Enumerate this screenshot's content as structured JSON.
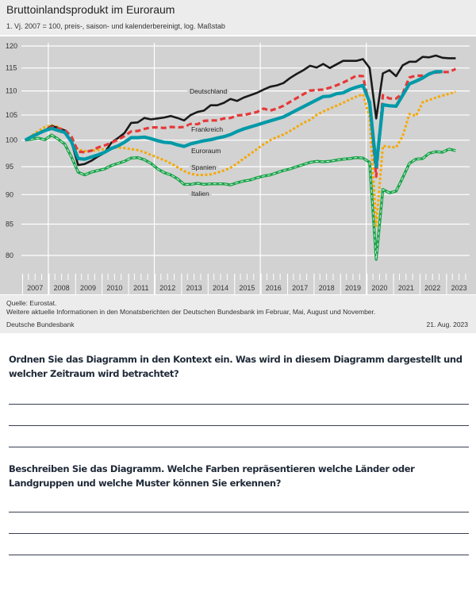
{
  "header": {
    "title": "Bruttoinlandsprodukt im Euroraum",
    "subtitle": "1. Vj. 2007 = 100, preis-, saison- und kalenderbereinigt, log. Maßstab"
  },
  "footer": {
    "source": "Quelle: Eurostat.",
    "note": "Weitere aktuelle Informationen in den Monatsberichten der Deutschen Bundesbank im Februar, Mai, August und November.",
    "publisher": "Deutsche Bundesbank",
    "date": "21. Aug. 2023"
  },
  "questions": [
    {
      "text": "Ordnen Sie das Diagramm in den Kontext ein. Was wird in diesem Diagramm dargestellt und welcher Zeitraum wird betrachtet?"
    },
    {
      "text": "Beschreiben Sie das Diagramm. Welche Farben repräsentieren welche Länder oder Landgruppen und welche Muster können Sie erkennen?"
    }
  ],
  "chart_data": {
    "type": "line",
    "title": "Bruttoinlandsprodukt im Euroraum",
    "subtitle": "1. Vj. 2007 = 100, preis-, saison- und kalenderbereinigt, log. Maßstab",
    "x_frequency": "quarterly",
    "x_start": "2007 Q1",
    "x_tick_labels": [
      "2007",
      "2008",
      "2009",
      "2010",
      "2011",
      "2012",
      "2013",
      "2014",
      "2015",
      "2016",
      "2017",
      "2018",
      "2019",
      "2020",
      "2021",
      "2022",
      "2023"
    ],
    "y_scale": "log",
    "ylim": [
      78,
      121
    ],
    "y_ticks": [
      80,
      85,
      90,
      95,
      100,
      105,
      110,
      115,
      120
    ],
    "grid": true,
    "legend": "inline labels",
    "series": [
      {
        "name": "Italien",
        "color": "#1aa34a",
        "style": "double-dashed",
        "values": [
          100,
          100.2,
          100.4,
          100.1,
          101.0,
          100.2,
          99.2,
          96.8,
          94.0,
          93.5,
          94.0,
          94.3,
          94.6,
          95.2,
          95.6,
          96.0,
          96.6,
          96.7,
          96.3,
          95.6,
          94.6,
          93.9,
          93.5,
          92.8,
          91.8,
          91.8,
          92.0,
          91.8,
          91.9,
          91.9,
          91.9,
          91.7,
          92.1,
          92.4,
          92.6,
          93.0,
          93.3,
          93.5,
          93.9,
          94.3,
          94.6,
          95.0,
          95.4,
          95.8,
          96.0,
          95.9,
          96.0,
          96.2,
          96.4,
          96.5,
          96.7,
          96.6,
          95.8,
          79.4,
          90.9,
          90.3,
          90.6,
          93.0,
          95.6,
          96.4,
          96.5,
          97.5,
          97.8,
          97.7,
          98.3,
          98.0
        ]
      },
      {
        "name": "Spanien",
        "color": "#f5a800",
        "style": "dotted",
        "values": [
          100,
          100.9,
          101.8,
          102.6,
          102.9,
          102.6,
          101.7,
          99.7,
          98.2,
          97.9,
          98.0,
          98.1,
          98.3,
          98.5,
          98.6,
          98.5,
          98.3,
          98.1,
          97.7,
          97.2,
          96.7,
          96.2,
          95.6,
          94.9,
          94.2,
          93.7,
          93.5,
          93.5,
          93.6,
          93.9,
          94.3,
          94.8,
          95.6,
          96.5,
          97.4,
          98.3,
          99.2,
          100.0,
          100.6,
          101.1,
          101.8,
          102.6,
          103.4,
          104.0,
          105.0,
          105.7,
          106.3,
          106.9,
          107.5,
          108.2,
          108.8,
          109.3,
          104.5,
          84.7,
          98.9,
          98.7,
          98.6,
          100.8,
          105.2,
          104.8,
          107.6,
          108.1,
          108.6,
          109.0,
          109.4,
          109.8
        ]
      },
      {
        "name": "Deutschland",
        "color": "#1a1a1a",
        "style": "solid",
        "values": [
          100,
          100.6,
          101.3,
          101.9,
          102.8,
          102.4,
          101.9,
          99.6,
          95.3,
          95.5,
          96.1,
          96.9,
          97.6,
          99.5,
          100.4,
          101.4,
          103.4,
          103.5,
          104.4,
          104.1,
          104.3,
          104.5,
          104.8,
          104.4,
          103.9,
          105.0,
          105.6,
          105.9,
          107.0,
          107.0,
          107.5,
          108.3,
          107.9,
          108.6,
          109.1,
          109.6,
          110.3,
          110.9,
          111.2,
          111.7,
          112.8,
          113.7,
          114.5,
          115.5,
          115.1,
          115.9,
          115.0,
          115.8,
          116.6,
          116.6,
          116.6,
          117.0,
          115.0,
          104.3,
          113.8,
          114.5,
          113.2,
          115.6,
          116.4,
          116.4,
          117.5,
          117.4,
          117.8,
          117.3,
          117.2,
          117.2
        ]
      },
      {
        "name": "Frankreich",
        "color": "#e63838",
        "style": "dashed",
        "values": [
          100,
          100.6,
          101.2,
          101.9,
          102.6,
          102.3,
          102.0,
          100.7,
          97.8,
          97.7,
          98.0,
          98.6,
          99.0,
          99.5,
          100.1,
          100.8,
          101.7,
          101.8,
          102.2,
          102.5,
          102.5,
          102.4,
          102.6,
          102.5,
          102.6,
          103.2,
          103.1,
          103.8,
          103.9,
          103.9,
          104.3,
          104.4,
          104.9,
          105.0,
          105.3,
          105.6,
          106.3,
          105.9,
          106.3,
          106.9,
          107.7,
          108.5,
          109.3,
          110.1,
          110.2,
          110.3,
          110.7,
          111.2,
          111.8,
          112.5,
          113.3,
          113.2,
          106.8,
          93.2,
          109.1,
          108.4,
          108.4,
          109.5,
          112.9,
          113.3,
          113.3,
          113.6,
          114.0,
          114.1,
          114.1,
          114.8
        ]
      },
      {
        "name": "Euroraum",
        "color": "#0099a8",
        "style": "solid-thick",
        "values": [
          100,
          100.7,
          101.3,
          101.9,
          102.3,
          101.9,
          101.5,
          99.7,
          96.5,
          96.4,
          96.8,
          97.2,
          97.7,
          98.4,
          98.9,
          99.6,
          100.5,
          100.5,
          100.6,
          100.3,
          99.9,
          99.6,
          99.5,
          99.1,
          98.8,
          99.3,
          99.6,
          99.9,
          100.1,
          100.4,
          100.7,
          101.1,
          101.7,
          102.2,
          102.6,
          103.0,
          103.4,
          103.8,
          104.2,
          104.6,
          105.3,
          106.0,
          106.7,
          107.4,
          108.1,
          108.8,
          108.9,
          109.4,
          109.6,
          110.3,
          110.8,
          111.2,
          107.6,
          95.0,
          107.1,
          106.9,
          106.8,
          109.1,
          111.5,
          112.1,
          112.8,
          113.7,
          114.2,
          114.2
        ]
      }
    ],
    "source": "Quelle: Eurostat.",
    "date": "21. Aug. 2023"
  }
}
